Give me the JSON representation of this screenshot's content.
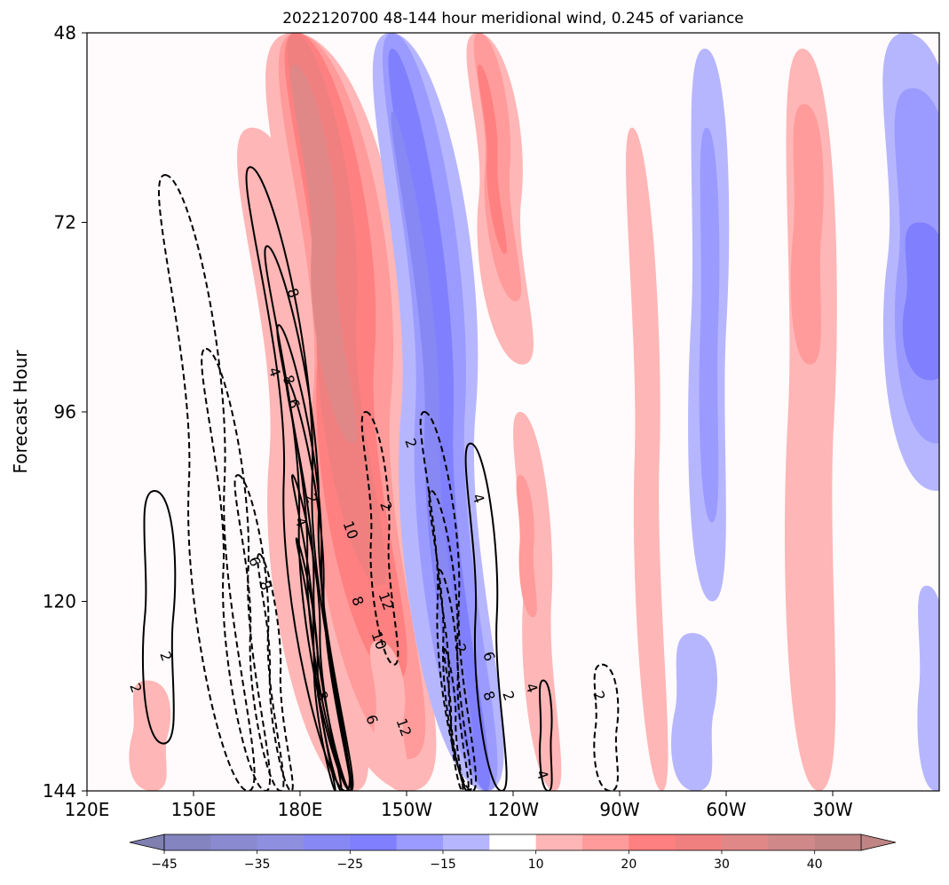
{
  "chart_data": {
    "type": "heatmap",
    "title": "2022120700 48-144 hour meridional wind, 0.245 of variance",
    "xlabel": "",
    "ylabel": "Forecast Hour",
    "x_range": [
      120,
      360
    ],
    "y_range": [
      48,
      144
    ],
    "x_ticks": [
      {
        "value": 120,
        "label": "120E"
      },
      {
        "value": 150,
        "label": "150E"
      },
      {
        "value": 180,
        "label": "180E"
      },
      {
        "value": 210,
        "label": "150W"
      },
      {
        "value": 240,
        "label": "120W"
      },
      {
        "value": 270,
        "label": "90W"
      },
      {
        "value": 300,
        "label": "60W"
      },
      {
        "value": 330,
        "label": "30W"
      }
    ],
    "y_ticks": [
      {
        "value": 48,
        "label": "48"
      },
      {
        "value": 72,
        "label": "72"
      },
      {
        "value": 96,
        "label": "96"
      },
      {
        "value": 120,
        "label": "120"
      },
      {
        "value": 144,
        "label": "144"
      }
    ],
    "colorbar": {
      "levels": [
        -50,
        -45,
        -40,
        -35,
        -30,
        -25,
        -20,
        -15,
        -10,
        10,
        15,
        20,
        25,
        30,
        35,
        40,
        45,
        50
      ],
      "colors": [
        "#7f7fb0",
        "#8484c0",
        "#8a8ad0",
        "#8f8fe0",
        "#8888f4",
        "#8080ff",
        "#9b9bff",
        "#b6b6ff",
        "#ffffff",
        "#ffb6b6",
        "#ff9b9b",
        "#ff8080",
        "#f08080",
        "#e08888",
        "#d08888",
        "#c08484"
      ],
      "tick_values": [
        -45,
        -35,
        -25,
        -15,
        10,
        20,
        30,
        40
      ],
      "tick_labels": [
        "−45",
        "−35",
        "−25",
        "−15",
        "10",
        "20",
        "30",
        "40"
      ]
    },
    "bands": [
      {
        "sign": "pos",
        "level": 1,
        "x_start": 157,
        "x_end": 176,
        "slope": 0.34,
        "y_top": 60,
        "y_bottom": 144
      },
      {
        "sign": "pos",
        "level": 1,
        "x_start": 163,
        "x_end": 193,
        "slope": 0.34,
        "y_top": 48,
        "y_bottom": 144
      },
      {
        "sign": "pos",
        "level": 2,
        "x_start": 168,
        "x_end": 190,
        "slope": 0.34,
        "y_top": 48,
        "y_bottom": 140
      },
      {
        "sign": "pos",
        "level": 3,
        "x_start": 171,
        "x_end": 187,
        "slope": 0.34,
        "y_top": 48,
        "y_bottom": 130
      },
      {
        "sign": "pos",
        "level": 4,
        "x_start": 173,
        "x_end": 184,
        "slope": 0.34,
        "y_top": 48,
        "y_bottom": 118
      },
      {
        "sign": "pos",
        "level": 5,
        "x_start": 175,
        "x_end": 182,
        "slope": 0.34,
        "y_top": 52,
        "y_bottom": 100
      },
      {
        "sign": "pos",
        "level": 1,
        "x_start": 198,
        "x_end": 206,
        "slope": 0.34,
        "y_top": 125,
        "y_bottom": 144
      },
      {
        "sign": "neg",
        "level": 1,
        "x_start": 195,
        "x_end": 216,
        "slope": 0.28,
        "y_top": 48,
        "y_bottom": 144
      },
      {
        "sign": "neg",
        "level": 2,
        "x_start": 199,
        "x_end": 213,
        "slope": 0.28,
        "y_top": 48,
        "y_bottom": 144
      },
      {
        "sign": "neg",
        "level": 3,
        "x_start": 202,
        "x_end": 210,
        "slope": 0.28,
        "y_top": 50,
        "y_bottom": 144
      },
      {
        "sign": "neg",
        "level": 4,
        "x_start": 204,
        "x_end": 208,
        "slope": 0.28,
        "y_top": 58,
        "y_bottom": 138
      },
      {
        "sign": "pos",
        "level": 1,
        "x_start": 224,
        "x_end": 236,
        "slope": 0.3,
        "y_top": 48,
        "y_bottom": 90
      },
      {
        "sign": "pos",
        "level": 2,
        "x_start": 227,
        "x_end": 234,
        "slope": 0.3,
        "y_top": 48,
        "y_bottom": 82
      },
      {
        "sign": "pos",
        "level": 3,
        "x_start": 229,
        "x_end": 232,
        "slope": 0.3,
        "y_top": 52,
        "y_bottom": 76
      },
      {
        "sign": "pos",
        "level": 1,
        "x_start": 238,
        "x_end": 246,
        "slope": 0.2,
        "y_top": 96,
        "y_bottom": 144
      },
      {
        "sign": "pos",
        "level": 2,
        "x_start": 240,
        "x_end": 244,
        "slope": 0.2,
        "y_top": 104,
        "y_bottom": 122
      },
      {
        "sign": "pos",
        "level": 1,
        "x_start": 270,
        "x_end": 277,
        "slope": 0.1,
        "y_top": 60,
        "y_bottom": 144
      },
      {
        "sign": "pos",
        "level": 1,
        "x_start": 315,
        "x_end": 328,
        "slope": 0.05,
        "y_top": 50,
        "y_bottom": 144
      },
      {
        "sign": "pos",
        "level": 2,
        "x_start": 318,
        "x_end": 326,
        "slope": 0.05,
        "y_top": 57,
        "y_bottom": 90
      },
      {
        "sign": "pos",
        "level": 1,
        "x_start": 132,
        "x_end": 142,
        "slope": 0.1,
        "y_top": 130,
        "y_bottom": 144
      },
      {
        "sign": "neg",
        "level": 1,
        "x_start": 289,
        "x_end": 299,
        "slope": 0.03,
        "y_top": 50,
        "y_bottom": 120
      },
      {
        "sign": "neg",
        "level": 2,
        "x_start": 292,
        "x_end": 297,
        "slope": 0.03,
        "y_top": 60,
        "y_bottom": 110
      },
      {
        "sign": "neg",
        "level": 1,
        "x_start": 285,
        "x_end": 296,
        "slope": 0.05,
        "y_top": 124,
        "y_bottom": 144
      },
      {
        "sign": "neg",
        "level": 1,
        "x_start": 341,
        "x_end": 360,
        "slope": 0.15,
        "y_top": 48,
        "y_bottom": 106
      },
      {
        "sign": "neg",
        "level": 2,
        "x_start": 345,
        "x_end": 360,
        "slope": 0.15,
        "y_top": 55,
        "y_bottom": 100
      },
      {
        "sign": "neg",
        "level": 3,
        "x_start": 349,
        "x_end": 360,
        "slope": 0.15,
        "y_top": 72,
        "y_bottom": 92
      },
      {
        "sign": "neg",
        "level": 1,
        "x_start": 353,
        "x_end": 360,
        "slope": 0.1,
        "y_top": 118,
        "y_bottom": 144
      }
    ],
    "contours": [
      {
        "style": "solid",
        "level": 2,
        "x_start": 162,
        "width": 8,
        "slope": 0.34,
        "y_top": 65,
        "y_bottom": 144
      },
      {
        "style": "solid",
        "level": 4,
        "x_start": 168,
        "width": 5.5,
        "slope": 0.34,
        "y_top": 75,
        "y_bottom": 144
      },
      {
        "style": "solid",
        "level": 6,
        "x_start": 172,
        "width": 4,
        "slope": 0.34,
        "y_top": 85,
        "y_bottom": 144
      },
      {
        "style": "solid",
        "level": 8,
        "x_start": 175,
        "width": 2.8,
        "slope": 0.34,
        "y_top": 92,
        "y_bottom": 144
      },
      {
        "style": "solid",
        "level": 10,
        "x_start": 177,
        "width": 1.8,
        "slope": 0.34,
        "y_top": 104,
        "y_bottom": 144
      },
      {
        "style": "solid",
        "level": 12,
        "x_start": 178.5,
        "width": 1,
        "slope": 0.34,
        "y_top": 112,
        "y_bottom": 144
      },
      {
        "style": "solid",
        "level": 2,
        "x_start": 225,
        "width": 6,
        "slope": 0.2,
        "y_top": 100,
        "y_bottom": 144
      },
      {
        "style": "solid",
        "level": 2,
        "x_start": 135,
        "width": 8,
        "slope": 0.08,
        "y_top": 106,
        "y_bottom": 138
      },
      {
        "style": "solid",
        "level": 4,
        "x_start": 247,
        "width": 3,
        "slope": 0.1,
        "y_top": 130,
        "y_bottom": 144
      },
      {
        "style": "dashed",
        "level": -2,
        "x_start": 137,
        "width": 10,
        "slope": 0.3,
        "y_top": 66,
        "y_bottom": 144
      },
      {
        "style": "dashed",
        "level": -4,
        "x_start": 150,
        "width": 7,
        "slope": 0.3,
        "y_top": 88,
        "y_bottom": 144
      },
      {
        "style": "dashed",
        "level": -6,
        "x_start": 160,
        "width": 5,
        "slope": 0.3,
        "y_top": 104,
        "y_bottom": 144
      },
      {
        "style": "dashed",
        "level": -8,
        "x_start": 167,
        "width": 3,
        "slope": 0.3,
        "y_top": 114,
        "y_bottom": 144
      },
      {
        "style": "dashed",
        "level": -2,
        "x_start": 196,
        "width": 5,
        "slope": 0.25,
        "y_top": 96,
        "y_bottom": 128
      },
      {
        "style": "dashed",
        "level": -2,
        "x_start": 212,
        "width": 6,
        "slope": 0.28,
        "y_top": 96,
        "y_bottom": 144
      },
      {
        "style": "dashed",
        "level": -4,
        "x_start": 215,
        "width": 4,
        "slope": 0.28,
        "y_top": 106,
        "y_bottom": 144
      },
      {
        "style": "dashed",
        "level": -6,
        "x_start": 218,
        "width": 2.5,
        "slope": 0.28,
        "y_top": 116,
        "y_bottom": 144
      },
      {
        "style": "dashed",
        "level": -8,
        "x_start": 220,
        "width": 1.3,
        "slope": 0.28,
        "y_top": 126,
        "y_bottom": 144
      },
      {
        "style": "dashed",
        "level": -2,
        "x_start": 262,
        "width": 6,
        "slope": 0.15,
        "y_top": 128,
        "y_bottom": 144
      }
    ],
    "contour_labels": [
      {
        "text": "2",
        "x": 133.5,
        "y": 131
      },
      {
        "text": "2",
        "x": 142,
        "y": 127
      },
      {
        "text": "4",
        "x": 172.6,
        "y": 91
      },
      {
        "text": "8",
        "x": 176.6,
        "y": 92
      },
      {
        "text": "6",
        "x": 178,
        "y": 95
      },
      {
        "text": "8",
        "x": 177.8,
        "y": 81
      },
      {
        "text": "2",
        "x": 183,
        "y": 107
      },
      {
        "text": "4",
        "x": 180,
        "y": 110
      },
      {
        "text": "10",
        "x": 194,
        "y": 111
      },
      {
        "text": "6",
        "x": 167,
        "y": 115
      },
      {
        "text": "8",
        "x": 170,
        "y": 118
      },
      {
        "text": "8",
        "x": 196,
        "y": 120
      },
      {
        "text": "12",
        "x": 204,
        "y": 120
      },
      {
        "text": "10",
        "x": 202,
        "y": 125
      },
      {
        "text": "8",
        "x": 186,
        "y": 132
      },
      {
        "text": "6",
        "x": 200,
        "y": 135
      },
      {
        "text": "12",
        "x": 209,
        "y": 136
      },
      {
        "text": "2",
        "x": 211,
        "y": 100
      },
      {
        "text": "2",
        "x": 204,
        "y": 108
      },
      {
        "text": "4",
        "x": 230,
        "y": 107
      },
      {
        "text": "2",
        "x": 225,
        "y": 126
      },
      {
        "text": "6",
        "x": 233,
        "y": 127
      },
      {
        "text": "8",
        "x": 233,
        "y": 132
      },
      {
        "text": "2",
        "x": 238.5,
        "y": 132
      },
      {
        "text": "4",
        "x": 245,
        "y": 131
      },
      {
        "text": "2",
        "x": 264,
        "y": 132
      },
      {
        "text": "4",
        "x": 248,
        "y": 142
      }
    ]
  }
}
